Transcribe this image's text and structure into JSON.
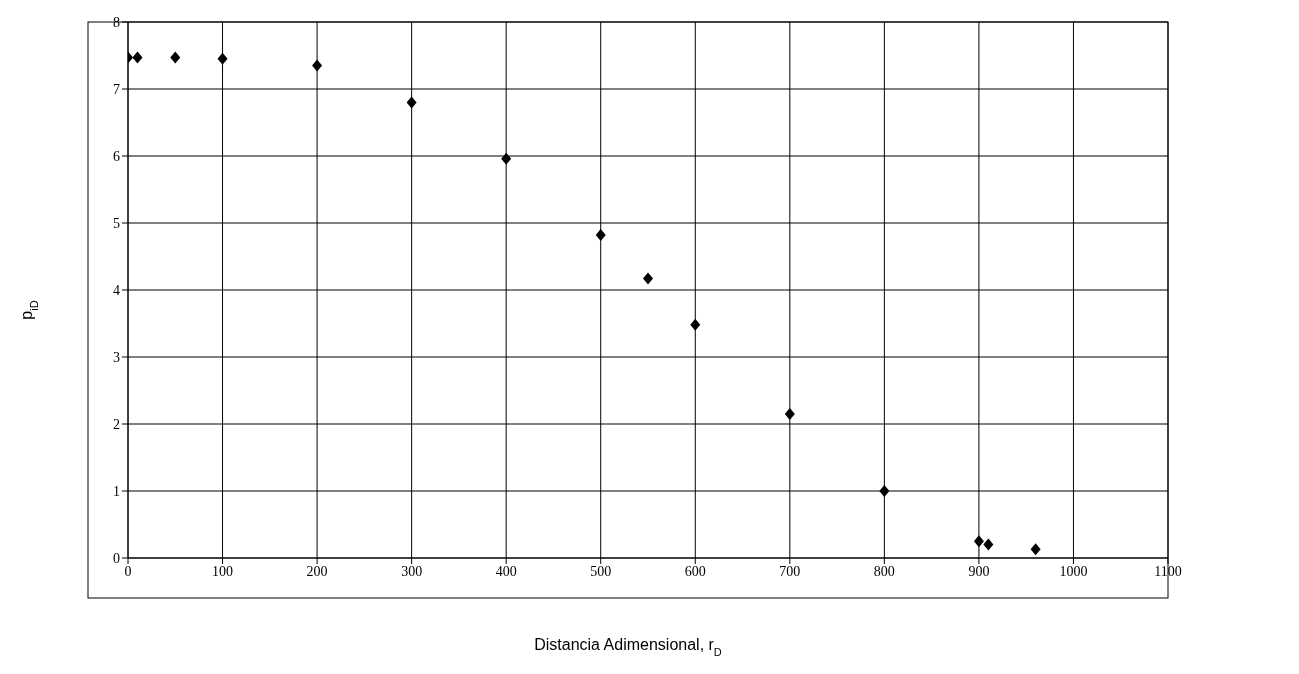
{
  "chart_data": {
    "type": "scatter",
    "xlabel": "Distancia Adimensional, r$_{D}$",
    "ylabel": "p$_{iD}$",
    "x": [
      0,
      10,
      50,
      100,
      200,
      300,
      400,
      500,
      550,
      600,
      700,
      800,
      900,
      910,
      960
    ],
    "series": [
      {
        "color": "#000000",
        "values": [
          7.47,
          7.47,
          7.47,
          7.45,
          7.35,
          6.8,
          5.96,
          4.82,
          4.17,
          3.48,
          2.15,
          1.0,
          0.25,
          0.2,
          0.13
        ]
      }
    ],
    "xlim": [
      0,
      1100
    ],
    "xticks": [
      0,
      100,
      200,
      300,
      400,
      500,
      600,
      700,
      800,
      900,
      1000,
      1100
    ],
    "ylim": [
      0,
      8
    ],
    "yticks": [
      0,
      1,
      2,
      3,
      4,
      5,
      6,
      7,
      8
    ],
    "grid": true,
    "marker": "diamond",
    "legend": false
  }
}
